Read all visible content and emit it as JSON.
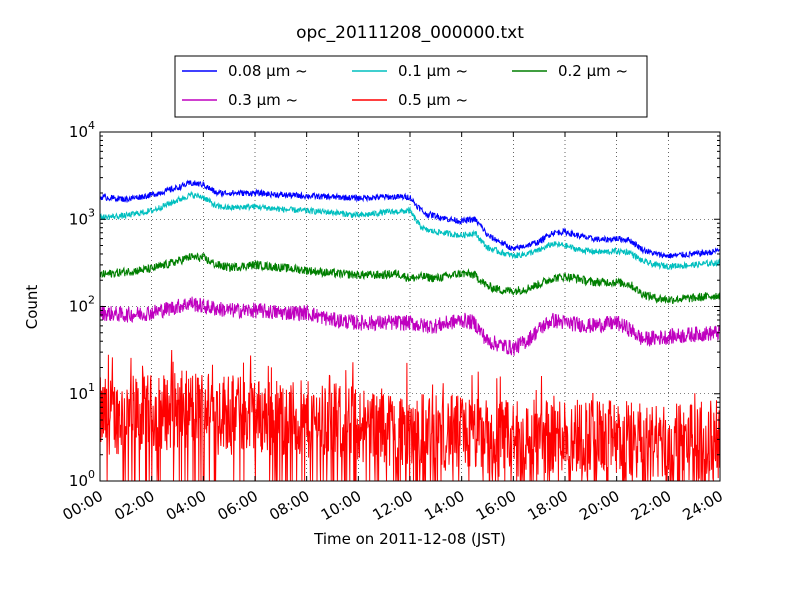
{
  "chart_data": {
    "type": "line",
    "title": "opc_20111208_000000.txt",
    "xlabel": "Time on 2011-12-08 (JST)",
    "ylabel": "Count",
    "yscale": "log",
    "ylim": [
      1,
      10000
    ],
    "xlim": [
      "00:00",
      "24:00"
    ],
    "x_ticks": [
      "00:00",
      "02:00",
      "04:00",
      "06:00",
      "08:00",
      "10:00",
      "12:00",
      "14:00",
      "16:00",
      "18:00",
      "20:00",
      "22:00",
      "24:00"
    ],
    "y_ticks": [
      {
        "base": "10",
        "exp": "0"
      },
      {
        "base": "10",
        "exp": "1"
      },
      {
        "base": "10",
        "exp": "2"
      },
      {
        "base": "10",
        "exp": "3"
      },
      {
        "base": "10",
        "exp": "4"
      }
    ],
    "grid": true,
    "legend_position": "top-center, above plot",
    "series": [
      {
        "name": "0.08 μm ~",
        "color": "#0000ff",
        "noise": 0.035,
        "points": [
          [
            0,
            1800
          ],
          [
            1,
            1700
          ],
          [
            2,
            1900
          ],
          [
            3,
            2300
          ],
          [
            3.5,
            2600
          ],
          [
            4,
            2500
          ],
          [
            4.5,
            2000
          ],
          [
            5,
            2000
          ],
          [
            6,
            2000
          ],
          [
            7,
            1900
          ],
          [
            8,
            1850
          ],
          [
            9,
            1800
          ],
          [
            10,
            1750
          ],
          [
            11,
            1800
          ],
          [
            12,
            1800
          ],
          [
            12.2,
            1500
          ],
          [
            12.6,
            1150
          ],
          [
            13,
            1100
          ],
          [
            13.5,
            1000
          ],
          [
            14,
            950
          ],
          [
            14.5,
            1000
          ],
          [
            14.8,
            800
          ],
          [
            15,
            650
          ],
          [
            15.5,
            550
          ],
          [
            16,
            450
          ],
          [
            16.5,
            500
          ],
          [
            17,
            550
          ],
          [
            17.5,
            700
          ],
          [
            18,
            720
          ],
          [
            18.5,
            650
          ],
          [
            19,
            600
          ],
          [
            19.5,
            580
          ],
          [
            20,
            600
          ],
          [
            20.5,
            580
          ],
          [
            21,
            450
          ],
          [
            21.5,
            400
          ],
          [
            22,
            380
          ],
          [
            23,
            400
          ],
          [
            23.7,
            420
          ],
          [
            24,
            450
          ]
        ]
      },
      {
        "name": "0.1 μm ~",
        "color": "#00bfbf",
        "noise": 0.035,
        "points": [
          [
            0,
            1050
          ],
          [
            1,
            1100
          ],
          [
            2,
            1250
          ],
          [
            3,
            1650
          ],
          [
            3.5,
            1900
          ],
          [
            4,
            1800
          ],
          [
            4.5,
            1400
          ],
          [
            5,
            1350
          ],
          [
            6,
            1400
          ],
          [
            7,
            1300
          ],
          [
            8,
            1250
          ],
          [
            9,
            1200
          ],
          [
            10,
            1100
          ],
          [
            11,
            1200
          ],
          [
            12,
            1250
          ],
          [
            12.3,
            900
          ],
          [
            12.6,
            750
          ],
          [
            13,
            720
          ],
          [
            14,
            650
          ],
          [
            14.5,
            700
          ],
          [
            14.8,
            550
          ],
          [
            15,
            470
          ],
          [
            15.5,
            420
          ],
          [
            16,
            380
          ],
          [
            16.5,
            400
          ],
          [
            17,
            440
          ],
          [
            17.5,
            520
          ],
          [
            18,
            500
          ],
          [
            18.5,
            450
          ],
          [
            19,
            430
          ],
          [
            19.5,
            420
          ],
          [
            20,
            430
          ],
          [
            20.5,
            420
          ],
          [
            21,
            330
          ],
          [
            21.5,
            300
          ],
          [
            22,
            290
          ],
          [
            23,
            300
          ],
          [
            24,
            320
          ]
        ]
      },
      {
        "name": "0.2 μm ~",
        "color": "#007f00",
        "noise": 0.05,
        "points": [
          [
            0,
            230
          ],
          [
            1,
            250
          ],
          [
            2,
            270
          ],
          [
            3,
            330
          ],
          [
            3.5,
            370
          ],
          [
            4,
            360
          ],
          [
            4.5,
            300
          ],
          [
            5,
            280
          ],
          [
            6,
            300
          ],
          [
            7,
            280
          ],
          [
            8,
            260
          ],
          [
            9,
            240
          ],
          [
            10,
            230
          ],
          [
            11,
            230
          ],
          [
            11.5,
            240
          ],
          [
            12,
            210
          ],
          [
            12.5,
            220
          ],
          [
            13,
            210
          ],
          [
            14,
            240
          ],
          [
            14.5,
            230
          ],
          [
            15,
            170
          ],
          [
            15.5,
            155
          ],
          [
            16,
            150
          ],
          [
            16.5,
            160
          ],
          [
            17,
            180
          ],
          [
            17.5,
            210
          ],
          [
            18,
            220
          ],
          [
            18.5,
            210
          ],
          [
            19,
            190
          ],
          [
            19.5,
            190
          ],
          [
            20,
            190
          ],
          [
            20.5,
            180
          ],
          [
            21,
            140
          ],
          [
            21.5,
            125
          ],
          [
            22,
            120
          ],
          [
            23,
            125
          ],
          [
            24,
            135
          ]
        ]
      },
      {
        "name": "0.3 μm ~",
        "color": "#bf00bf",
        "noise": 0.09,
        "points": [
          [
            0,
            85
          ],
          [
            1,
            80
          ],
          [
            2,
            85
          ],
          [
            3,
            100
          ],
          [
            3.5,
            110
          ],
          [
            4,
            100
          ],
          [
            5,
            90
          ],
          [
            6,
            90
          ],
          [
            7,
            85
          ],
          [
            8,
            85
          ],
          [
            9,
            70
          ],
          [
            10,
            65
          ],
          [
            11,
            65
          ],
          [
            12,
            65
          ],
          [
            12.5,
            60
          ],
          [
            13,
            60
          ],
          [
            14,
            70
          ],
          [
            14.5,
            65
          ],
          [
            15,
            40
          ],
          [
            16,
            33
          ],
          [
            16.5,
            40
          ],
          [
            17,
            55
          ],
          [
            17.5,
            70
          ],
          [
            18,
            65
          ],
          [
            19,
            60
          ],
          [
            20,
            65
          ],
          [
            20.5,
            55
          ],
          [
            21,
            42
          ],
          [
            22,
            45
          ],
          [
            23,
            48
          ],
          [
            24,
            50
          ]
        ]
      },
      {
        "name": "0.5 μm ~",
        "color": "#ff0000",
        "noise": 0.0,
        "points": [
          [
            0,
            5.5
          ],
          [
            2,
            6
          ],
          [
            4,
            7
          ],
          [
            6,
            5.5
          ],
          [
            8,
            5
          ],
          [
            10,
            4.5
          ],
          [
            12,
            4
          ],
          [
            14,
            3.5
          ],
          [
            16,
            3
          ],
          [
            18,
            3.5
          ],
          [
            20,
            3
          ],
          [
            22,
            2.8
          ],
          [
            24,
            3
          ]
        ]
      }
    ]
  }
}
